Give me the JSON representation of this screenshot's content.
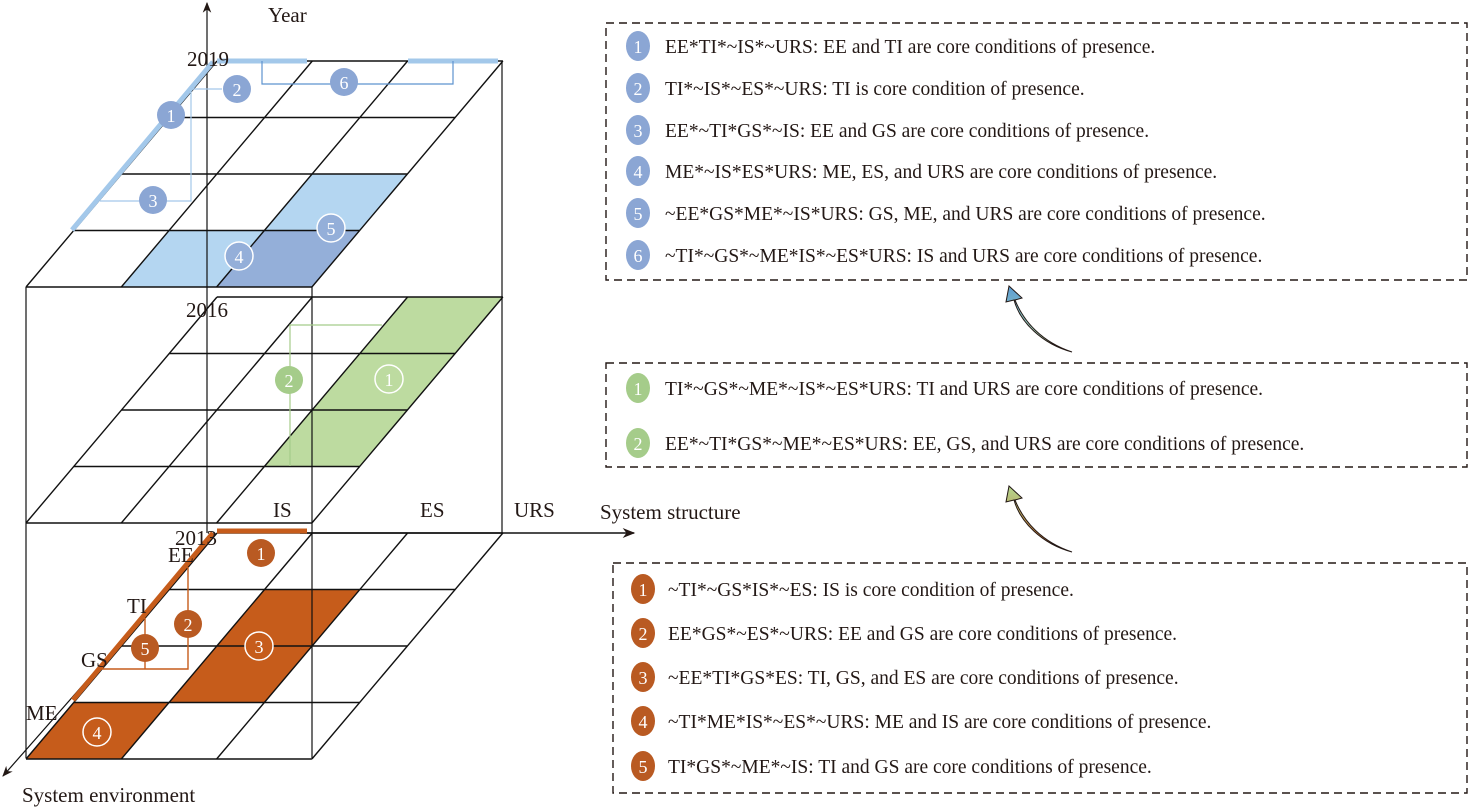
{
  "axes": {
    "year": "Year",
    "structure": "System structure",
    "environment": "System environment"
  },
  "structure_labels": [
    "IS",
    "ES",
    "URS"
  ],
  "environment_labels": [
    "EE",
    "TI",
    "GS",
    "ME"
  ],
  "colors": {
    "blue_light": "#b4d6f1",
    "blue_dark": "#94afd9",
    "blue_marker": "#8ba6d4",
    "blue_line": "#a3c8ea",
    "green_fill": "#bddba0",
    "green_marker": "#a5cc8a",
    "orange_fill": "#c65c1b",
    "orange_marker": "#b95a22"
  },
  "layers": [
    {
      "year": "2019",
      "fills": [
        {
          "row": 3,
          "col": 1,
          "tone": "blue_light"
        },
        {
          "row": 3,
          "col": 2,
          "tone": "blue_dark"
        },
        {
          "row": 2,
          "col": 2,
          "tone": "blue_light"
        }
      ],
      "legend": [
        {
          "num": "1",
          "text": "EE*TI*~IS*~URS: EE and TI are core conditions of presence."
        },
        {
          "num": "2",
          "text": "TI*~IS*~ES*~URS: TI is core condition of presence."
        },
        {
          "num": "3",
          "text": "EE*~TI*GS*~IS: EE and GS are core conditions of presence."
        },
        {
          "num": "4",
          "text": "ME*~IS*ES*URS: ME, ES, and URS are core conditions of presence."
        },
        {
          "num": "5",
          "text": "~EE*GS*ME*~IS*URS: GS, ME, and URS are core conditions of presence."
        },
        {
          "num": "6",
          "text": "~TI*~GS*~ME*IS*~ES*URS: IS and URS are core conditions of presence."
        }
      ]
    },
    {
      "year": "2016",
      "fills": [
        {
          "row": 0,
          "col": 2,
          "tone": "green_fill"
        },
        {
          "row": 1,
          "col": 2,
          "tone": "green_fill"
        },
        {
          "row": 2,
          "col": 2,
          "tone": "green_fill"
        }
      ],
      "legend": [
        {
          "num": "1",
          "text": "TI*~GS*~ME*~IS*~ES*URS: TI and URS are core conditions of presence."
        },
        {
          "num": "2",
          "text": "EE*~TI*GS*~ME*~ES*URS: EE, GS, and URS are core conditions of presence."
        }
      ]
    },
    {
      "year": "2013",
      "fills": [
        {
          "row": 1,
          "col": 1,
          "tone": "orange_fill"
        },
        {
          "row": 2,
          "col": 1,
          "tone": "orange_fill"
        },
        {
          "row": 3,
          "col": 0,
          "tone": "orange_fill"
        }
      ],
      "legend": [
        {
          "num": "1",
          "text": "~TI*~GS*IS*~ES: IS is core condition of presence."
        },
        {
          "num": "2",
          "text": "EE*GS*~ES*~URS: EE and GS are core conditions of presence."
        },
        {
          "num": "3",
          "text": "~EE*TI*GS*ES: TI, GS, and ES are core conditions of presence."
        },
        {
          "num": "4",
          "text": "~TI*ME*IS*~ES*~URS: ME and IS are core conditions of presence."
        },
        {
          "num": "5",
          "text": "TI*GS*~ME*~IS: TI and GS are core conditions of presence."
        }
      ]
    }
  ]
}
